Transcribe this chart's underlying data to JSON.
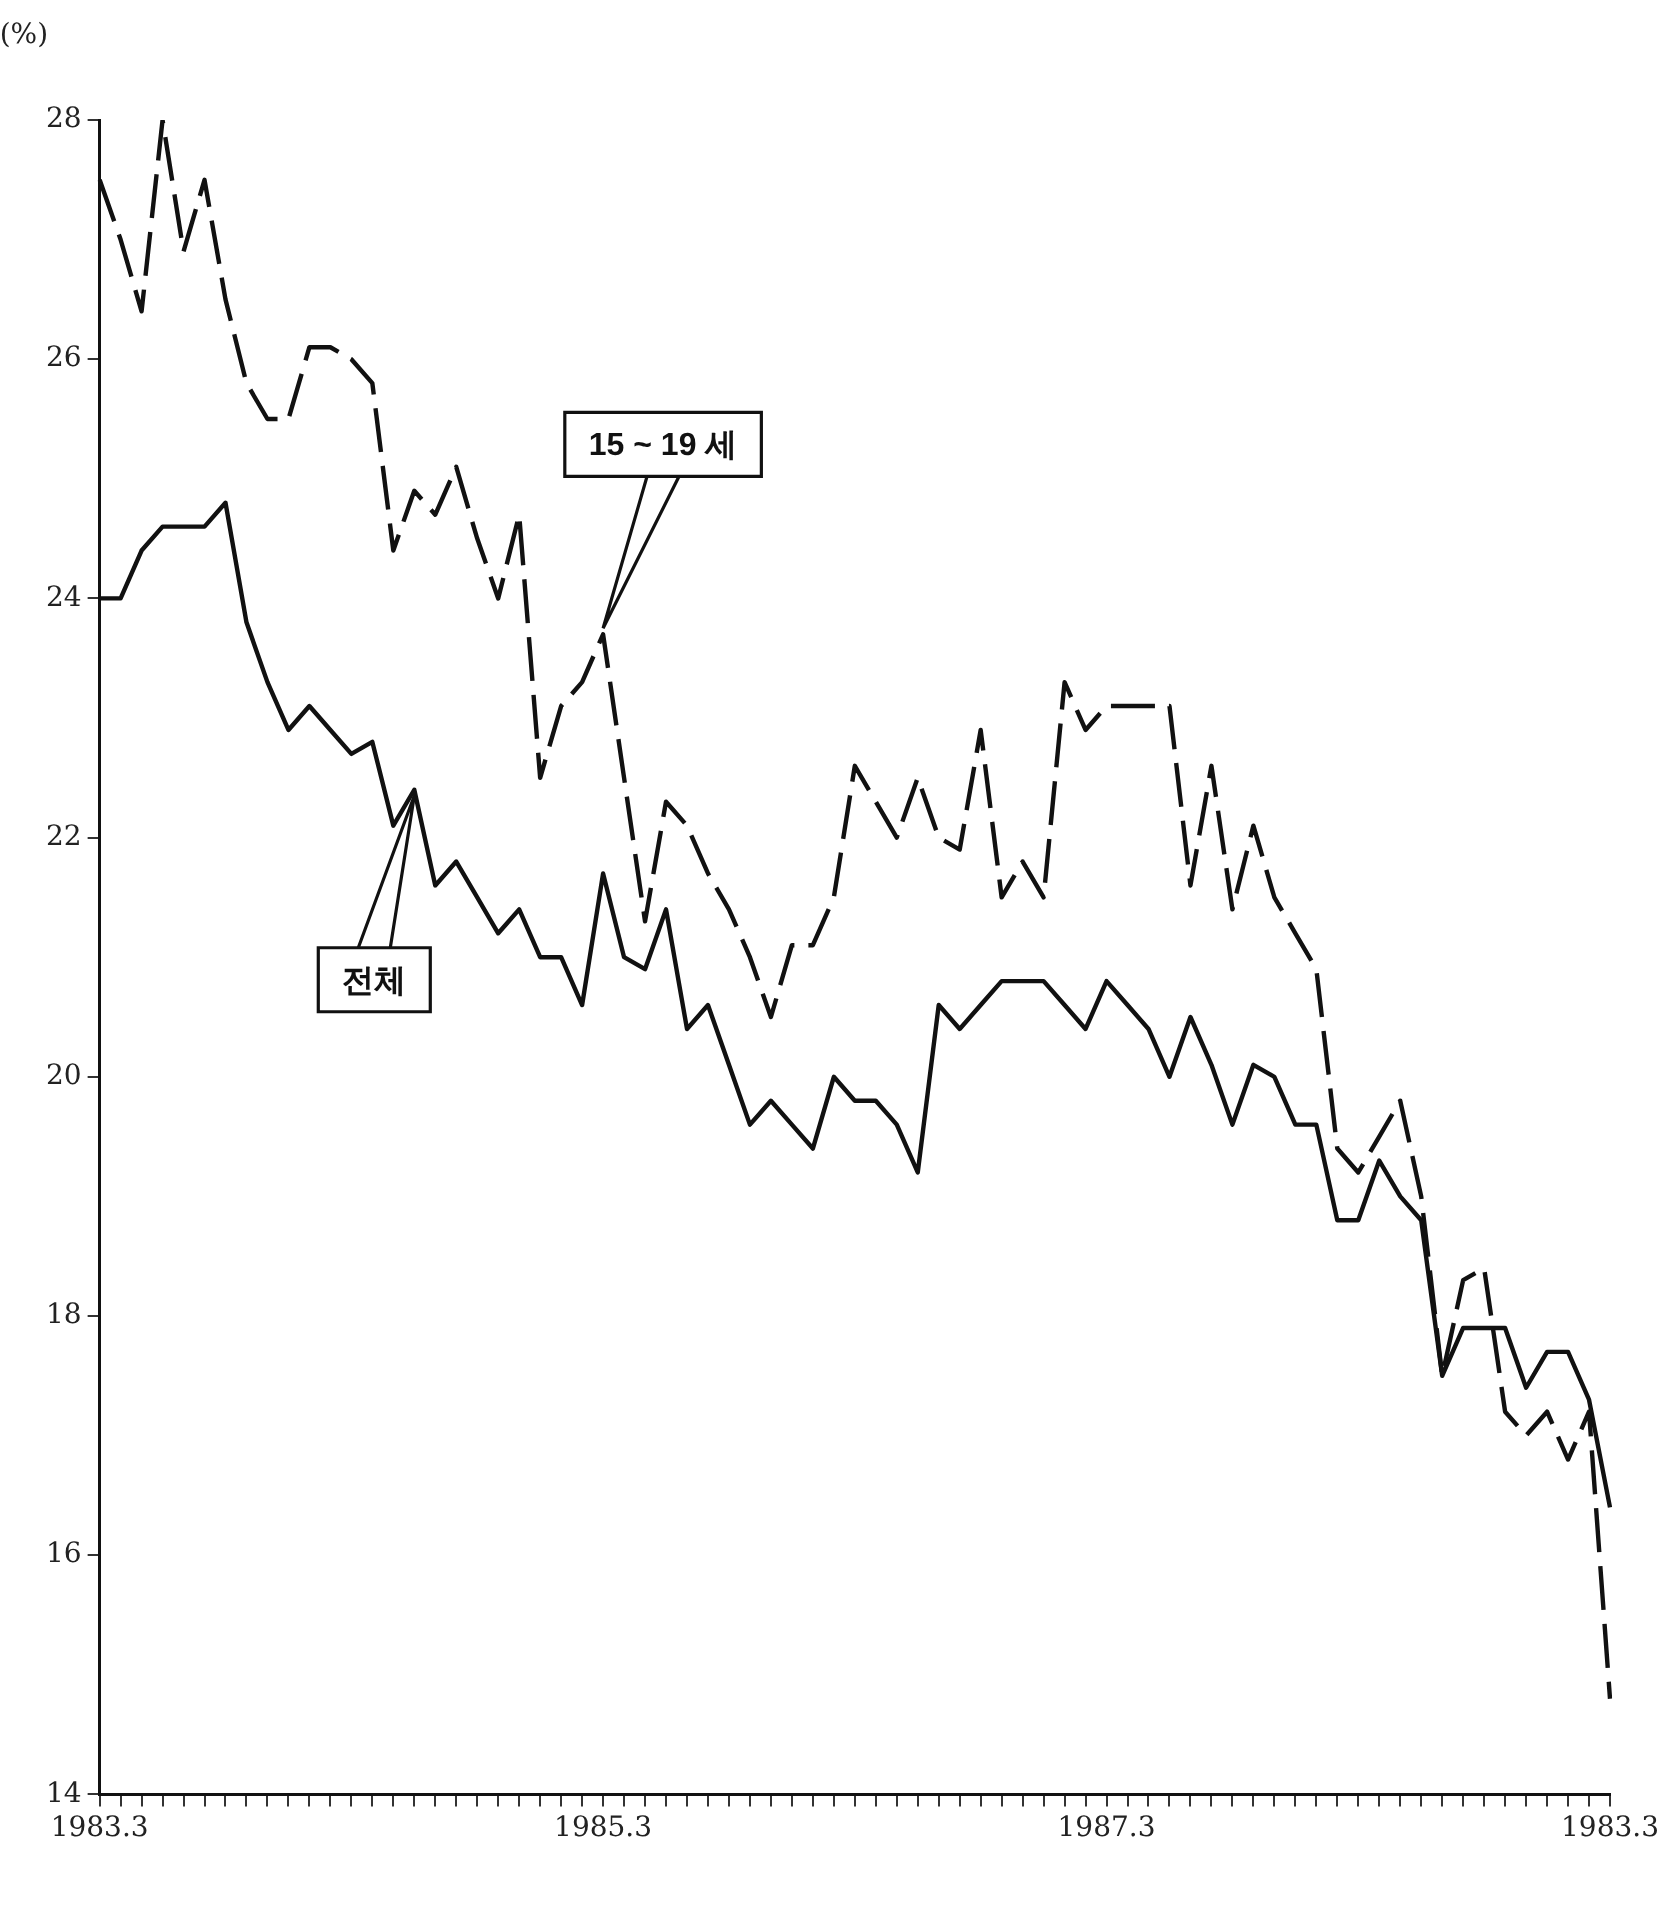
{
  "chart_data": {
    "type": "line",
    "ylabel": "(%)",
    "categories": [
      "1983.3",
      null,
      null,
      null,
      null,
      null,
      null,
      null,
      null,
      null,
      null,
      null,
      null,
      null,
      null,
      null,
      null,
      null,
      null,
      null,
      null,
      null,
      null,
      null,
      "1985.3",
      null,
      null,
      null,
      null,
      null,
      null,
      null,
      null,
      null,
      null,
      null,
      null,
      null,
      null,
      null,
      null,
      null,
      null,
      null,
      null,
      null,
      null,
      null,
      "1987.3",
      null,
      null,
      null,
      null,
      null,
      null,
      null,
      null,
      null,
      null,
      null,
      null,
      null,
      null,
      null,
      null,
      null,
      null,
      null,
      null,
      null,
      null,
      null,
      "1983.3"
    ],
    "series": [
      {
        "name": "15 ~ 19 세",
        "color": "#111111",
        "line_style": "dashed",
        "values": [
          27.5,
          27.0,
          26.4,
          28.0,
          26.9,
          27.5,
          26.5,
          25.8,
          25.5,
          25.5,
          26.1,
          26.1,
          26.0,
          25.8,
          24.4,
          24.9,
          24.7,
          25.1,
          24.5,
          24.0,
          24.7,
          22.5,
          23.1,
          23.3,
          23.7,
          22.5,
          21.3,
          22.3,
          22.1,
          21.7,
          21.4,
          21.0,
          20.5,
          21.1,
          21.1,
          21.5,
          22.6,
          22.3,
          22.0,
          22.5,
          22.0,
          21.9,
          22.9,
          21.5,
          21.8,
          21.5,
          23.3,
          22.9,
          23.1,
          23.1,
          23.1,
          23.1,
          21.6,
          22.6,
          21.4,
          22.1,
          21.5,
          21.2,
          20.9,
          19.4,
          19.2,
          19.5,
          19.8,
          19.0,
          17.5,
          18.3,
          18.4,
          17.2,
          17.0,
          17.2,
          16.8,
          17.2,
          14.8
        ]
      },
      {
        "name": "전체",
        "color": "#111111",
        "line_style": "solid",
        "values": [
          24.0,
          24.0,
          24.4,
          24.6,
          24.6,
          24.6,
          24.8,
          23.8,
          23.3,
          22.9,
          23.1,
          22.9,
          22.7,
          22.8,
          22.1,
          22.4,
          21.6,
          21.8,
          21.5,
          21.2,
          21.4,
          21.0,
          21.0,
          20.6,
          21.7,
          21.0,
          20.9,
          21.4,
          20.4,
          20.6,
          20.1,
          19.6,
          19.8,
          19.6,
          19.4,
          20.0,
          19.8,
          19.8,
          19.6,
          19.2,
          20.6,
          20.4,
          20.6,
          20.8,
          20.8,
          20.8,
          20.6,
          20.4,
          20.8,
          20.6,
          20.4,
          20.0,
          20.5,
          20.1,
          19.6,
          20.1,
          20.0,
          19.6,
          19.6,
          18.8,
          18.8,
          19.3,
          19.0,
          18.8,
          17.5,
          17.9,
          17.9,
          17.9,
          17.4,
          17.7,
          17.7,
          17.3,
          16.4
        ]
      }
    ],
    "ylim": [
      14,
      28
    ],
    "yticks": [
      14,
      16,
      18,
      20,
      22,
      24,
      26,
      28
    ],
    "grid": false,
    "legend": false,
    "marker": "none"
  }
}
